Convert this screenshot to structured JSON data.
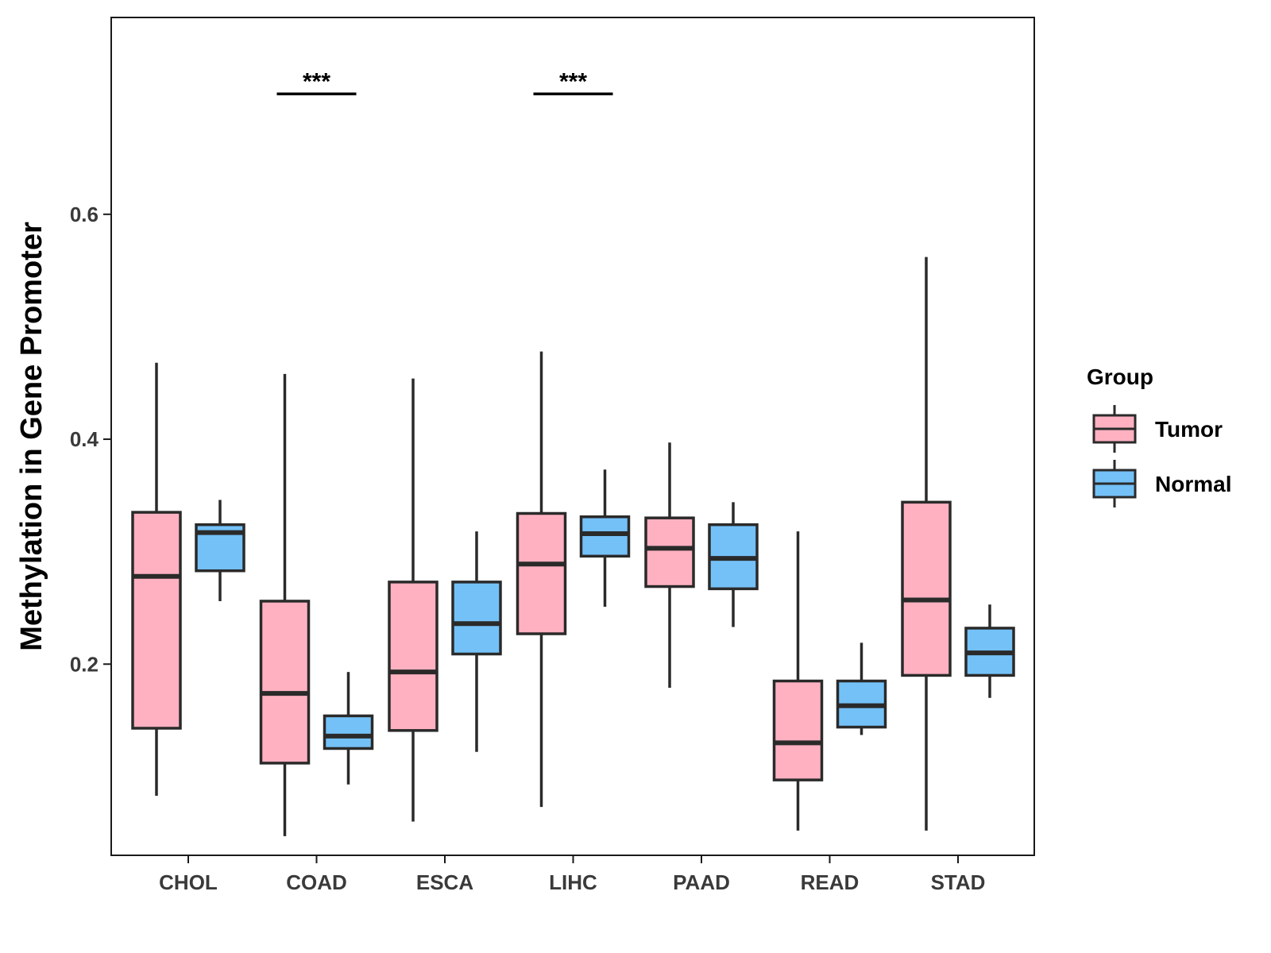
{
  "chart_data": {
    "type": "box",
    "title": "",
    "xlabel": "",
    "ylabel": "Methylation in Gene Promoter",
    "ylim": [
      0.03,
      0.775
    ],
    "yticks": [
      0.2,
      0.4,
      0.6
    ],
    "ytick_labels": [
      "0.2",
      "0.4",
      "0.6"
    ],
    "grid": false,
    "legend": {
      "title": "Group",
      "position": "right"
    },
    "categories": [
      "CHOL",
      "COAD",
      "ESCA",
      "LIHC",
      "PAAD",
      "READ",
      "STAD"
    ],
    "series": [
      {
        "name": "Tumor",
        "color": "#FFB1C1",
        "boxes": [
          {
            "whisker_low": 0.083,
            "q1": 0.143,
            "median": 0.278,
            "q3": 0.335,
            "whisker_high": 0.468
          },
          {
            "whisker_low": 0.047,
            "q1": 0.112,
            "median": 0.174,
            "q3": 0.256,
            "whisker_high": 0.458
          },
          {
            "whisker_low": 0.06,
            "q1": 0.141,
            "median": 0.193,
            "q3": 0.273,
            "whisker_high": 0.454
          },
          {
            "whisker_low": 0.073,
            "q1": 0.227,
            "median": 0.289,
            "q3": 0.334,
            "whisker_high": 0.478
          },
          {
            "whisker_low": 0.179,
            "q1": 0.269,
            "median": 0.303,
            "q3": 0.33,
            "whisker_high": 0.397
          },
          {
            "whisker_low": 0.052,
            "q1": 0.097,
            "median": 0.13,
            "q3": 0.185,
            "whisker_high": 0.318
          },
          {
            "whisker_low": 0.052,
            "q1": 0.19,
            "median": 0.257,
            "q3": 0.344,
            "whisker_high": 0.562
          }
        ]
      },
      {
        "name": "Normal",
        "color": "#74C1F8",
        "boxes": [
          {
            "whisker_low": 0.256,
            "q1": 0.283,
            "median": 0.317,
            "q3": 0.324,
            "whisker_high": 0.346
          },
          {
            "whisker_low": 0.093,
            "q1": 0.125,
            "median": 0.136,
            "q3": 0.154,
            "whisker_high": 0.193
          },
          {
            "whisker_low": 0.122,
            "q1": 0.209,
            "median": 0.236,
            "q3": 0.273,
            "whisker_high": 0.318
          },
          {
            "whisker_low": 0.251,
            "q1": 0.296,
            "median": 0.316,
            "q3": 0.331,
            "whisker_high": 0.373
          },
          {
            "whisker_low": 0.233,
            "q1": 0.267,
            "median": 0.294,
            "q3": 0.324,
            "whisker_high": 0.344
          },
          {
            "whisker_low": 0.137,
            "q1": 0.144,
            "median": 0.163,
            "q3": 0.185,
            "whisker_high": 0.219
          },
          {
            "whisker_low": 0.17,
            "q1": 0.19,
            "median": 0.21,
            "q3": 0.232,
            "whisker_high": 0.253
          }
        ]
      }
    ],
    "annotations": [
      {
        "category": "COAD",
        "label": "***",
        "y": 0.707
      },
      {
        "category": "LIHC",
        "label": "***",
        "y": 0.707
      }
    ]
  }
}
